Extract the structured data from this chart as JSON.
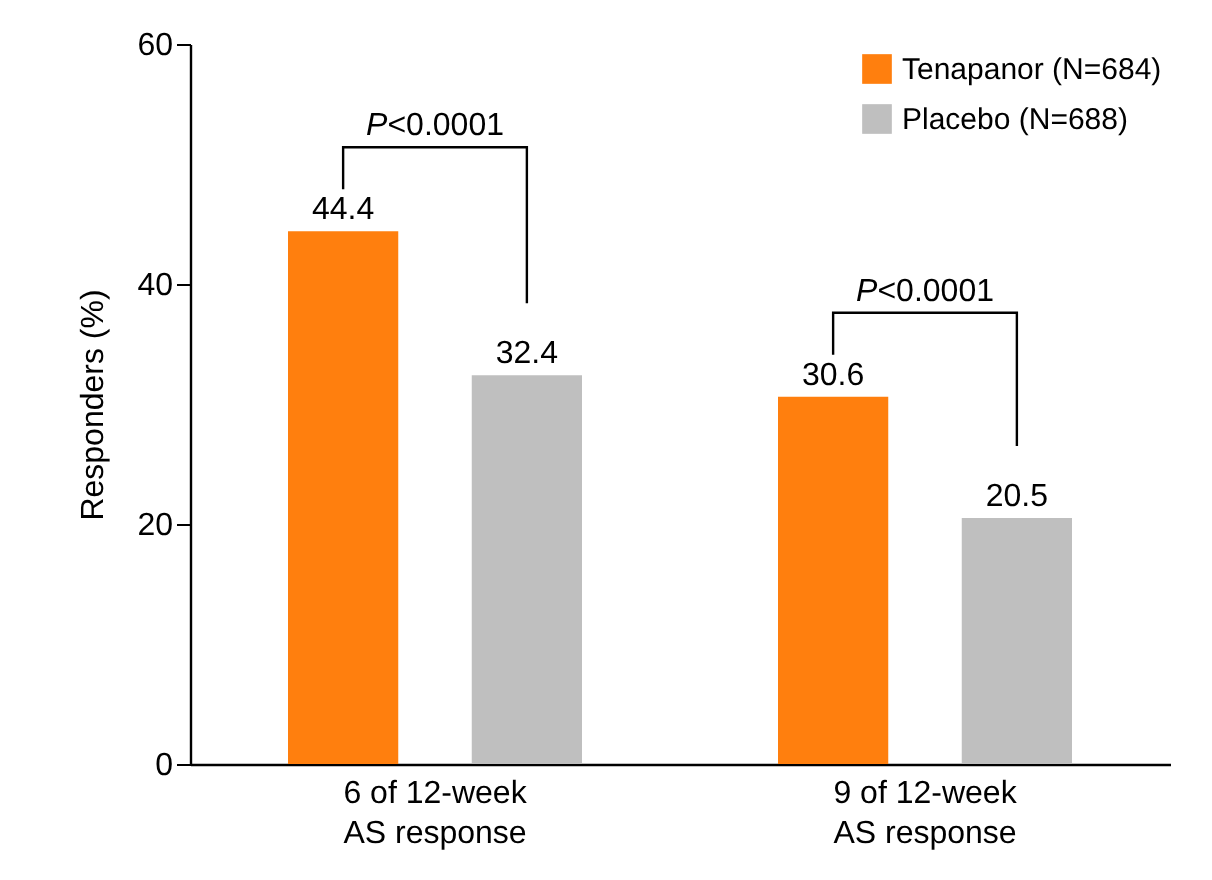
{
  "chart_data": {
    "type": "bar",
    "ylabel": "Responders (%)",
    "categories": [
      "6 of 12-week AS response",
      "9 of 12-week AS response"
    ],
    "series": [
      {
        "name": "Tenapanor (N=684)",
        "color": "#ff7f0e",
        "values": [
          44.4,
          30.6
        ]
      },
      {
        "name": "Placebo (N=688)",
        "color": "#bfbfbf",
        "values": [
          32.4,
          20.5
        ]
      }
    ],
    "ylim": [
      0,
      60
    ],
    "yticks": [
      0,
      20,
      40,
      60
    ],
    "grid": false,
    "legend": "top right",
    "data_labels": true,
    "annotations": [
      "P<0.0001",
      "P<0.0001"
    ]
  }
}
